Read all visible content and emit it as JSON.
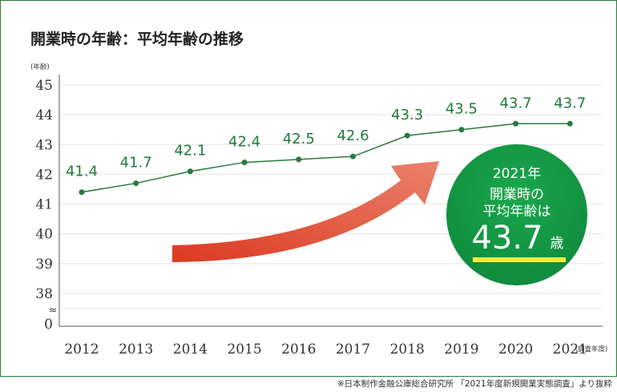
{
  "title": "開業時の年齢：平均年齢の推移",
  "source": "※日本制作金融公庫総合研究所 「2021年度新規開業実態調査」より抜粋",
  "chart_data": {
    "type": "line",
    "title": "開業時の年齢：平均年齢の推移",
    "ylabel": "(年齢)",
    "xlabel": "(調査年度)",
    "categories": [
      "2012",
      "2013",
      "2014",
      "2015",
      "2016",
      "2017",
      "2018",
      "2019",
      "2020",
      "2021"
    ],
    "values": [
      41.4,
      41.7,
      42.1,
      42.4,
      42.5,
      42.6,
      43.3,
      43.5,
      43.7,
      43.7
    ],
    "data_labels": [
      "41.4",
      "41.7",
      "42.1",
      "42.4",
      "42.5",
      "42.6",
      "43.3",
      "43.5",
      "43.7",
      "43.7"
    ],
    "yticks": [
      "45",
      "44",
      "43",
      "42",
      "41",
      "40",
      "39",
      "38",
      "0"
    ],
    "yticks_values": [
      45,
      44,
      43,
      42,
      41,
      40,
      39,
      38
    ],
    "ylim": [
      38,
      45
    ],
    "axis_break": "≈",
    "grid": true,
    "line_color": "#2b7a3d",
    "accent_color": "#e2452c",
    "callout": {
      "year": "2021年",
      "line1": "開業時の",
      "line2": "平均年齢は",
      "value": "43.7",
      "unit": "歳",
      "color": "#1aa64d",
      "underline_color": "#f2ea3a"
    }
  }
}
